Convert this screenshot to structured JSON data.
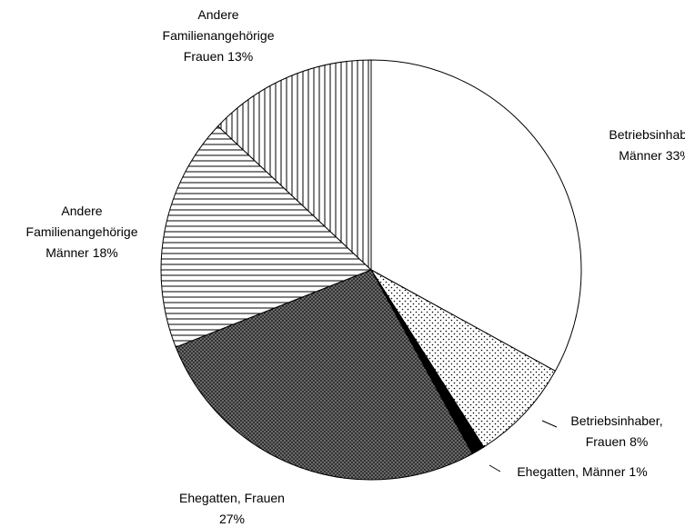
{
  "chart_data": {
    "type": "pie",
    "categories": [
      "Betriebsinhaber, Männer",
      "Betriebsinhaber, Frauen",
      "Ehegatten, Männer",
      "Ehegatten, Frauen",
      "Andere Familienangehörige Männer",
      "Andere Familienangehörige Frauen"
    ],
    "values": [
      33,
      8,
      1,
      27,
      18,
      13
    ],
    "value_labels": [
      "33%",
      "8%",
      "1%",
      "27%",
      "18%",
      "13%"
    ],
    "patterns": [
      "none",
      "dots",
      "solid",
      "dense-dots",
      "horizontal",
      "vertical"
    ],
    "colors": [
      "#ffffff",
      "#ffffff",
      "#000000",
      "#000000",
      "#ffffff",
      "#ffffff"
    ]
  }
}
